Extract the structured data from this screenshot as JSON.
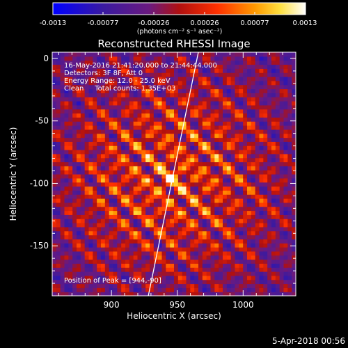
{
  "chart_data": {
    "type": "heatmap",
    "title": "Reconstructed RHESSI Image",
    "xlabel": "Heliocentric X (arcsec)",
    "ylabel": "Heliocentric Y (arcsec)",
    "xlim": [
      855,
      1040
    ],
    "ylim": [
      -190,
      5
    ],
    "xticks": [
      900,
      950,
      1000
    ],
    "yticks": [
      0,
      -50,
      -100,
      -150
    ],
    "colorbar": {
      "range": [
        -0.0013,
        0.0013
      ],
      "ticks": [
        "-0.0013",
        "-0.00077",
        "-0.00026",
        "0.00026",
        "0.00077",
        "0.0013"
      ],
      "label": "(photons cm⁻² s⁻¹ asec⁻²)",
      "colormap": "blue-purple-red-orange-yellow-white"
    },
    "annotations": [
      "16-May-2016 21:41:20.000 to 21:44:44.000",
      "Detectors: 3F 8F, Att 0",
      "Energy Range: 12.0 - 25.0 keV",
      "Clean     Total counts: 1.35E+03"
    ],
    "peak_text": "Position of Peak = [944,-90]",
    "peak": {
      "x": 944,
      "y": -90
    },
    "limb_line": [
      [
        928,
        -190
      ],
      [
        966,
        5
      ]
    ],
    "source_center": {
      "x": 945,
      "y": -95
    },
    "timestamp": "5-Apr-2018 00:56"
  }
}
